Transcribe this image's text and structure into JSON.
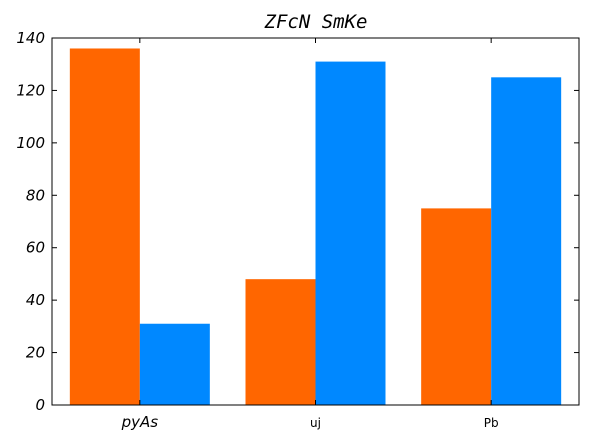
{
  "chart_data": {
    "type": "bar",
    "title": "ZFcN SmKe",
    "xlabel": "",
    "ylabel": "",
    "categories": [
      "pyAs",
      "uj",
      "Pb"
    ],
    "category_label_styles": [
      "italic",
      "small",
      "small"
    ],
    "series": [
      {
        "values": [
          136,
          48,
          75
        ],
        "color": "#ff6600"
      },
      {
        "values": [
          31,
          131,
          125
        ],
        "color": "#0088ff"
      }
    ],
    "ylim": [
      0,
      140
    ],
    "yticks": [
      0,
      20,
      40,
      60,
      80,
      100,
      120,
      140
    ],
    "grid": false,
    "legend": "none"
  }
}
